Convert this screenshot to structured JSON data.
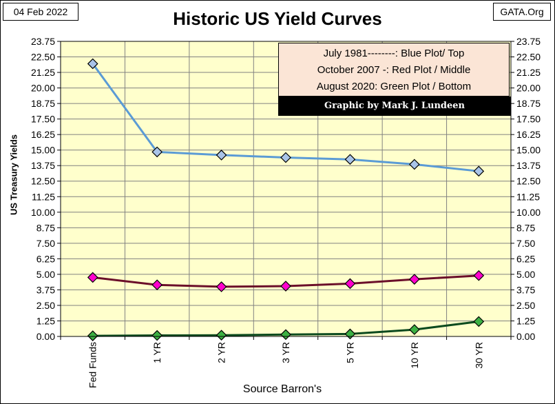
{
  "header": {
    "date": "04 Feb 2022",
    "source_org": "GATA.Org"
  },
  "chart_data": {
    "type": "line",
    "title": "Historic US Yield Curves",
    "xlabel": "Source Barron's",
    "ylabel": "US Treasury Yields",
    "ylim": [
      0,
      23.75
    ],
    "y_ticks": [
      "0.00",
      "1.25",
      "2.50",
      "3.75",
      "5.00",
      "6.25",
      "7.50",
      "8.75",
      "10.00",
      "11.25",
      "12.50",
      "13.75",
      "15.00",
      "16.25",
      "17.50",
      "18.75",
      "20.00",
      "21.25",
      "22.50",
      "23.75"
    ],
    "categories": [
      "Fed Funds",
      "1 YR",
      "2 YR",
      "3 YR",
      "5 YR",
      "10 YR",
      "30 YR"
    ],
    "grid": true,
    "legend_position": "top-right",
    "legend_lines": [
      "July 1981--------: Blue Plot/ Top",
      "October 2007 -: Red Plot / Middle",
      "August 2020: Green Plot / Bottom"
    ],
    "credit": "Graphic by Mark J. Lundeen",
    "series": [
      {
        "values": [
          21.95,
          14.85,
          14.6,
          14.4,
          14.25,
          13.85,
          13.3
        ],
        "line_color": "#5b9bd5",
        "marker_color": "#a9c4e8"
      },
      {
        "values": [
          4.75,
          4.15,
          4.0,
          4.05,
          4.25,
          4.6,
          4.9
        ],
        "line_color": "#6b0f2a",
        "marker_color": "#ff00cc"
      },
      {
        "values": [
          0.05,
          0.08,
          0.1,
          0.15,
          0.2,
          0.55,
          1.2
        ],
        "line_color": "#0b4a1e",
        "marker_color": "#3cb043"
      }
    ],
    "colors": {
      "plot_background": "#ffffcc",
      "grid": "#808080",
      "legend_background": "#fbe5d6",
      "credit_background": "#000000",
      "credit_text": "#ffffff"
    }
  }
}
